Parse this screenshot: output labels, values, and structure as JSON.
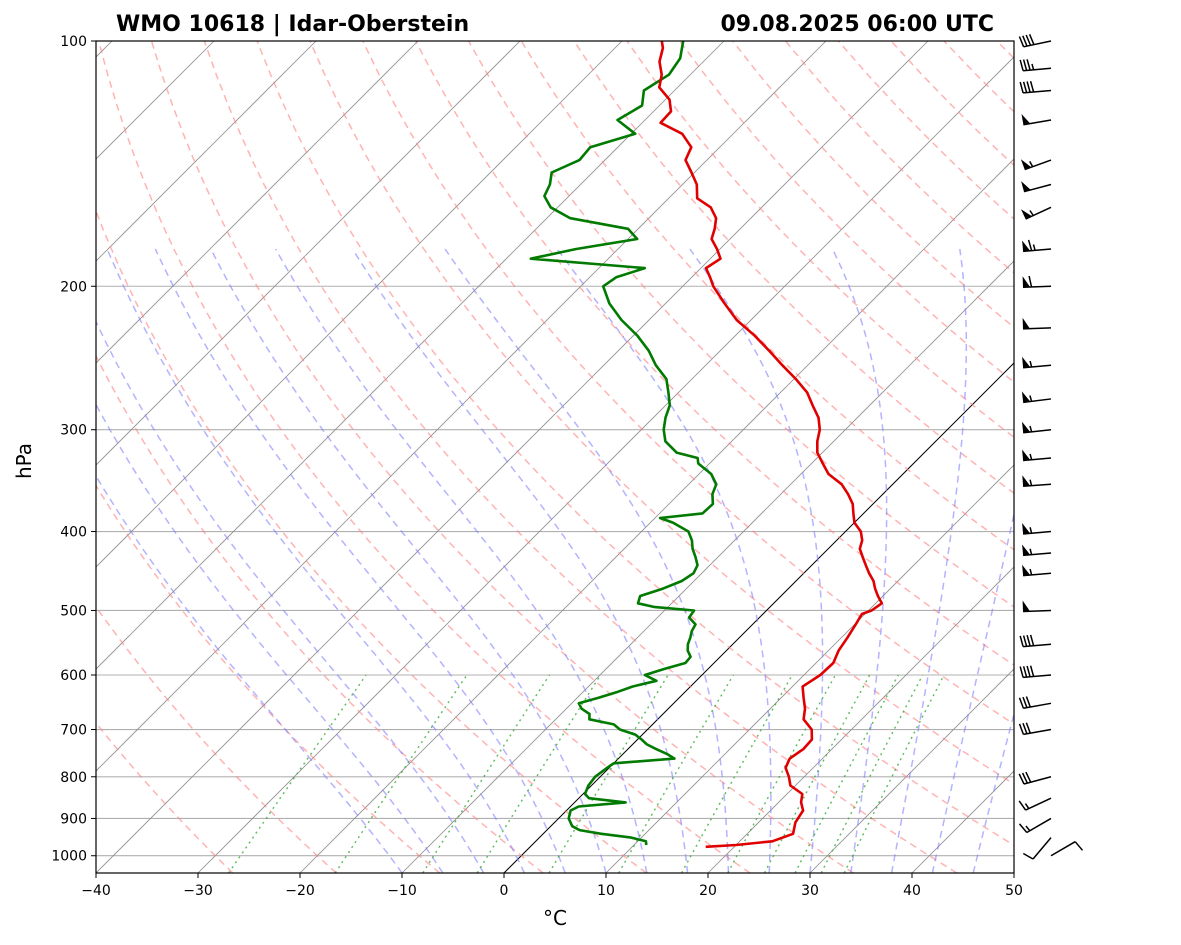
{
  "chart_data": {
    "type": "skew-t",
    "title_station": "WMO 10618 | Idar-Oberstein",
    "title_time": "09.08.2025 06:00 UTC",
    "xlabel": "°C",
    "ylabel": "hPa",
    "xlim": [
      -40,
      50
    ],
    "ylim_hpa": [
      1050,
      100
    ],
    "x_ticks": [
      -40,
      -30,
      -20,
      -10,
      0,
      10,
      20,
      30,
      40,
      50
    ],
    "x_tick_labels": [
      "−40",
      "−30",
      "−20",
      "−10",
      "0",
      "10",
      "20",
      "30",
      "40",
      "50"
    ],
    "p_ticks": [
      1000,
      900,
      800,
      700,
      600,
      500,
      400,
      300,
      200,
      100
    ],
    "p_tick_labels": [
      "1000",
      "900",
      "800",
      "700",
      "600",
      "500",
      "400",
      "300",
      "200",
      "100"
    ],
    "temperature": {
      "name": "Temperature",
      "color": "#e00000",
      "points": [
        [
          975,
          17.2
        ],
        [
          970,
          20.0
        ],
        [
          960,
          23.2
        ],
        [
          940,
          24.5
        ],
        [
          910,
          23.6
        ],
        [
          880,
          23.2
        ],
        [
          860,
          22.2
        ],
        [
          840,
          21.5
        ],
        [
          820,
          19.5
        ],
        [
          800,
          18.5
        ],
        [
          780,
          17.3
        ],
        [
          760,
          16.8
        ],
        [
          740,
          17.2
        ],
        [
          720,
          17.1
        ],
        [
          700,
          16.1
        ],
        [
          680,
          14.3
        ],
        [
          660,
          13.4
        ],
        [
          640,
          12.2
        ],
        [
          620,
          11.0
        ],
        [
          600,
          11.6
        ],
        [
          580,
          11.7
        ],
        [
          560,
          11.0
        ],
        [
          540,
          10.6
        ],
        [
          520,
          10.1
        ],
        [
          505,
          9.7
        ],
        [
          500,
          10.3
        ],
        [
          490,
          10.6
        ],
        [
          480,
          9.5
        ],
        [
          470,
          8.5
        ],
        [
          460,
          7.6
        ],
        [
          450,
          6.4
        ],
        [
          440,
          5.3
        ],
        [
          430,
          4.2
        ],
        [
          420,
          3.1
        ],
        [
          410,
          2.5
        ],
        [
          400,
          1.5
        ],
        [
          390,
          0.0
        ],
        [
          380,
          -1.0
        ],
        [
          370,
          -2.0
        ],
        [
          360,
          -3.4
        ],
        [
          350,
          -5.0
        ],
        [
          340,
          -7.3
        ],
        [
          330,
          -8.9
        ],
        [
          320,
          -10.5
        ],
        [
          310,
          -11.6
        ],
        [
          300,
          -12.5
        ],
        [
          290,
          -13.8
        ],
        [
          280,
          -15.6
        ],
        [
          270,
          -17.4
        ],
        [
          260,
          -19.8
        ],
        [
          250,
          -22.5
        ],
        [
          240,
          -25.2
        ],
        [
          230,
          -28.1
        ],
        [
          220,
          -31.4
        ],
        [
          210,
          -34.2
        ],
        [
          200,
          -37.0
        ],
        [
          195,
          -38.2
        ],
        [
          190,
          -39.5
        ],
        [
          185,
          -39.0
        ],
        [
          180,
          -40.3
        ],
        [
          175,
          -41.8
        ],
        [
          170,
          -42.5
        ],
        [
          165,
          -43.4
        ],
        [
          160,
          -45.0
        ],
        [
          156,
          -47.2
        ],
        [
          150,
          -48.6
        ],
        [
          145,
          -50.3
        ],
        [
          140,
          -52.1
        ],
        [
          135,
          -52.8
        ],
        [
          130,
          -55.0
        ],
        [
          126,
          -58.2
        ],
        [
          122,
          -58.3
        ],
        [
          118,
          -59.6
        ],
        [
          114,
          -61.8
        ],
        [
          110,
          -62.8
        ],
        [
          106,
          -64.3
        ],
        [
          102,
          -65.3
        ],
        [
          100,
          -66.1
        ]
      ]
    },
    "dewpoint": {
      "name": "Dewpoint",
      "color": "#007a00",
      "points": [
        [
          970,
          11.2
        ],
        [
          960,
          10.8
        ],
        [
          950,
          9.0
        ],
        [
          940,
          5.7
        ],
        [
          930,
          3.2
        ],
        [
          920,
          2.1
        ],
        [
          900,
          1.0
        ],
        [
          880,
          0.4
        ],
        [
          870,
          0.8
        ],
        [
          860,
          5.0
        ],
        [
          850,
          1.0
        ],
        [
          840,
          0.2
        ],
        [
          820,
          -0.3
        ],
        [
          800,
          -0.5
        ],
        [
          780,
          -0.2
        ],
        [
          770,
          0.0
        ],
        [
          760,
          5.5
        ],
        [
          750,
          4.3
        ],
        [
          740,
          2.8
        ],
        [
          730,
          1.4
        ],
        [
          720,
          0.4
        ],
        [
          710,
          -0.7
        ],
        [
          700,
          -2.7
        ],
        [
          690,
          -3.8
        ],
        [
          680,
          -6.7
        ],
        [
          670,
          -7.2
        ],
        [
          660,
          -8.5
        ],
        [
          650,
          -9.3
        ],
        [
          640,
          -7.9
        ],
        [
          630,
          -6.7
        ],
        [
          620,
          -5.7
        ],
        [
          610,
          -3.9
        ],
        [
          600,
          -5.6
        ],
        [
          590,
          -4.3
        ],
        [
          580,
          -2.8
        ],
        [
          570,
          -2.9
        ],
        [
          560,
          -3.8
        ],
        [
          550,
          -4.4
        ],
        [
          540,
          -4.8
        ],
        [
          530,
          -5.3
        ],
        [
          520,
          -5.6
        ],
        [
          510,
          -6.9
        ],
        [
          500,
          -7.1
        ],
        [
          495,
          -11.4
        ],
        [
          490,
          -13.3
        ],
        [
          480,
          -13.8
        ],
        [
          470,
          -12.3
        ],
        [
          460,
          -11.2
        ],
        [
          450,
          -10.8
        ],
        [
          440,
          -11.2
        ],
        [
          430,
          -12.2
        ],
        [
          420,
          -13.3
        ],
        [
          410,
          -14.2
        ],
        [
          400,
          -15.4
        ],
        [
          390,
          -17.8
        ],
        [
          385,
          -19.5
        ],
        [
          380,
          -15.8
        ],
        [
          370,
          -15.7
        ],
        [
          360,
          -16.7
        ],
        [
          350,
          -17.3
        ],
        [
          340,
          -18.8
        ],
        [
          330,
          -21.1
        ],
        [
          325,
          -21.7
        ],
        [
          320,
          -24.3
        ],
        [
          310,
          -26.5
        ],
        [
          300,
          -27.8
        ],
        [
          290,
          -28.8
        ],
        [
          280,
          -29.6
        ],
        [
          270,
          -31.0
        ],
        [
          260,
          -32.5
        ],
        [
          250,
          -34.9
        ],
        [
          240,
          -37.0
        ],
        [
          230,
          -39.6
        ],
        [
          220,
          -42.7
        ],
        [
          210,
          -45.5
        ],
        [
          200,
          -47.8
        ],
        [
          195,
          -47.4
        ],
        [
          190,
          -45.5
        ],
        [
          185,
          -57.6
        ],
        [
          180,
          -54.1
        ],
        [
          175,
          -49.1
        ],
        [
          170,
          -51.0
        ],
        [
          165,
          -57.7
        ],
        [
          160,
          -60.7
        ],
        [
          155,
          -62.4
        ],
        [
          150,
          -63.0
        ],
        [
          145,
          -64.0
        ],
        [
          140,
          -62.5
        ],
        [
          135,
          -62.7
        ],
        [
          130,
          -59.6
        ],
        [
          125,
          -62.7
        ],
        [
          120,
          -61.7
        ],
        [
          115,
          -63.0
        ],
        [
          110,
          -62.1
        ],
        [
          105,
          -62.6
        ],
        [
          100,
          -64.0
        ]
      ]
    },
    "wind_barbs": [
      {
        "p": 1000,
        "dir_deg": 60,
        "speed_kt": 10
      },
      {
        "p": 950,
        "dir_deg": 220,
        "speed_kt": 10
      },
      {
        "p": 900,
        "dir_deg": 240,
        "speed_kt": 15
      },
      {
        "p": 850,
        "dir_deg": 245,
        "speed_kt": 15
      },
      {
        "p": 800,
        "dir_deg": 255,
        "speed_kt": 30
      },
      {
        "p": 700,
        "dir_deg": 260,
        "speed_kt": 30
      },
      {
        "p": 650,
        "dir_deg": 260,
        "speed_kt": 30
      },
      {
        "p": 600,
        "dir_deg": 265,
        "speed_kt": 40
      },
      {
        "p": 550,
        "dir_deg": 265,
        "speed_kt": 40
      },
      {
        "p": 500,
        "dir_deg": 268,
        "speed_kt": 50
      },
      {
        "p": 450,
        "dir_deg": 265,
        "speed_kt": 55
      },
      {
        "p": 425,
        "dir_deg": 265,
        "speed_kt": 55
      },
      {
        "p": 400,
        "dir_deg": 265,
        "speed_kt": 55
      },
      {
        "p": 350,
        "dir_deg": 266,
        "speed_kt": 55
      },
      {
        "p": 325,
        "dir_deg": 265,
        "speed_kt": 55
      },
      {
        "p": 300,
        "dir_deg": 264,
        "speed_kt": 55
      },
      {
        "p": 275,
        "dir_deg": 263,
        "speed_kt": 55
      },
      {
        "p": 250,
        "dir_deg": 265,
        "speed_kt": 55
      },
      {
        "p": 225,
        "dir_deg": 268,
        "speed_kt": 50
      },
      {
        "p": 200,
        "dir_deg": 268,
        "speed_kt": 60
      },
      {
        "p": 180,
        "dir_deg": 265,
        "speed_kt": 65
      },
      {
        "p": 160,
        "dir_deg": 245,
        "speed_kt": 55
      },
      {
        "p": 150,
        "dir_deg": 255,
        "speed_kt": 50
      },
      {
        "p": 140,
        "dir_deg": 250,
        "speed_kt": 55
      },
      {
        "p": 125,
        "dir_deg": 260,
        "speed_kt": 50
      },
      {
        "p": 115,
        "dir_deg": 265,
        "speed_kt": 40
      },
      {
        "p": 108,
        "dir_deg": 265,
        "speed_kt": 35
      },
      {
        "p": 100,
        "dir_deg": 258,
        "speed_kt": 40
      }
    ],
    "reference_lines": {
      "isotherms": "solid gray, skewed 45°",
      "dry_adiabats": "dashed red",
      "moist_adiabats": "dashed blue",
      "mixing_ratio": "dotted green",
      "zero_isotherm": "solid black"
    },
    "colors": {
      "isotherm": "#8c8c8c",
      "dry_adiabat": "#ff8080",
      "moist_adiabat": "#8080ff",
      "mixing_ratio": "#33aa33",
      "grid": "#b0b0b0"
    }
  }
}
